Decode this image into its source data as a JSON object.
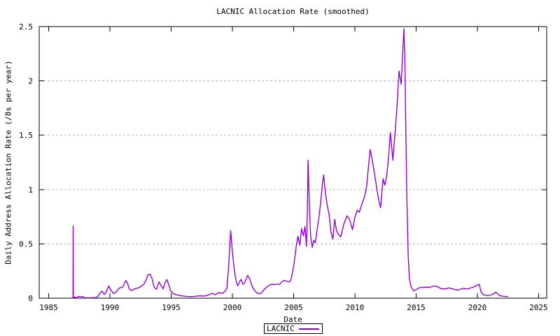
{
  "colors": {
    "line": "#9400d3",
    "grid": "#b4b4b4",
    "axis": "#000000",
    "text": "#000000",
    "background": "#ffffff"
  },
  "legend": {
    "entries": [
      {
        "label": "LACNIC",
        "color": "#9400d3"
      }
    ]
  },
  "chart_data": {
    "type": "line",
    "title": "LACNIC Allocation Rate (smoothed)",
    "xlabel": "Date",
    "ylabel": "Daily Address Allocation Rate (/8s per year)",
    "xlim": [
      1984.23,
      2025.66
    ],
    "ylim": [
      0,
      2.5
    ],
    "xticks": [
      1985,
      1990,
      1995,
      2000,
      2005,
      2010,
      2015,
      2020,
      2025
    ],
    "xtick_labels": [
      "1985",
      "1990",
      "1995",
      "2000",
      "2005",
      "2010",
      "2015",
      "2020",
      "2025"
    ],
    "yticks": [
      0,
      0.5,
      1,
      1.5,
      2,
      2.5
    ],
    "ytick_labels": [
      "0",
      "0.5",
      "1",
      "1.5",
      "2",
      "2.5"
    ],
    "grid": "horizontal-dashed",
    "legend_position": "bottom-center-below-xlabel",
    "series": [
      {
        "name": "LACNIC",
        "color": "#9400d3",
        "points": [
          [
            1986.99,
            0.0
          ],
          [
            1987.0,
            0.664
          ],
          [
            1987.02,
            0.01
          ],
          [
            1987.3,
            0.005
          ],
          [
            1987.45,
            0.018
          ],
          [
            1987.6,
            0.01
          ],
          [
            1987.75,
            0.016
          ],
          [
            1987.95,
            0.004
          ],
          [
            1988.4,
            0.003
          ],
          [
            1988.9,
            0.006
          ],
          [
            1989.05,
            0.02
          ],
          [
            1989.2,
            0.05
          ],
          [
            1989.35,
            0.065
          ],
          [
            1989.55,
            0.035
          ],
          [
            1989.7,
            0.055
          ],
          [
            1989.9,
            0.114
          ],
          [
            1990.1,
            0.071
          ],
          [
            1990.3,
            0.043
          ],
          [
            1990.5,
            0.056
          ],
          [
            1990.75,
            0.092
          ],
          [
            1991.05,
            0.103
          ],
          [
            1991.3,
            0.163
          ],
          [
            1991.45,
            0.135
          ],
          [
            1991.6,
            0.082
          ],
          [
            1991.8,
            0.07
          ],
          [
            1992.0,
            0.086
          ],
          [
            1992.2,
            0.092
          ],
          [
            1992.4,
            0.098
          ],
          [
            1992.6,
            0.114
          ],
          [
            1992.75,
            0.125
          ],
          [
            1992.95,
            0.168
          ],
          [
            1993.1,
            0.215
          ],
          [
            1993.3,
            0.22
          ],
          [
            1993.45,
            0.18
          ],
          [
            1993.6,
            0.103
          ],
          [
            1993.8,
            0.082
          ],
          [
            1994.0,
            0.15
          ],
          [
            1994.2,
            0.114
          ],
          [
            1994.35,
            0.086
          ],
          [
            1994.5,
            0.142
          ],
          [
            1994.65,
            0.172
          ],
          [
            1994.8,
            0.125
          ],
          [
            1994.95,
            0.071
          ],
          [
            1995.15,
            0.043
          ],
          [
            1995.35,
            0.034
          ],
          [
            1995.7,
            0.025
          ],
          [
            1996.1,
            0.018
          ],
          [
            1996.5,
            0.014
          ],
          [
            1996.9,
            0.016
          ],
          [
            1997.3,
            0.022
          ],
          [
            1997.7,
            0.02
          ],
          [
            1998.0,
            0.028
          ],
          [
            1998.35,
            0.045
          ],
          [
            1998.6,
            0.032
          ],
          [
            1998.9,
            0.052
          ],
          [
            1999.2,
            0.045
          ],
          [
            1999.4,
            0.065
          ],
          [
            1999.55,
            0.09
          ],
          [
            1999.7,
            0.3
          ],
          [
            1999.86,
            0.623
          ],
          [
            2000.0,
            0.425
          ],
          [
            2000.1,
            0.318
          ],
          [
            2000.22,
            0.21
          ],
          [
            2000.35,
            0.135
          ],
          [
            2000.45,
            0.114
          ],
          [
            2000.6,
            0.157
          ],
          [
            2000.72,
            0.172
          ],
          [
            2000.85,
            0.129
          ],
          [
            2001.0,
            0.142
          ],
          [
            2001.25,
            0.211
          ],
          [
            2001.4,
            0.18
          ],
          [
            2001.6,
            0.114
          ],
          [
            2001.8,
            0.071
          ],
          [
            2002.0,
            0.05
          ],
          [
            2002.2,
            0.039
          ],
          [
            2002.4,
            0.05
          ],
          [
            2002.6,
            0.082
          ],
          [
            2002.8,
            0.103
          ],
          [
            2003.0,
            0.12
          ],
          [
            2003.2,
            0.129
          ],
          [
            2003.45,
            0.125
          ],
          [
            2003.65,
            0.132
          ],
          [
            2003.85,
            0.126
          ],
          [
            2004.05,
            0.152
          ],
          [
            2004.2,
            0.163
          ],
          [
            2004.4,
            0.158
          ],
          [
            2004.6,
            0.15
          ],
          [
            2004.75,
            0.16
          ],
          [
            2004.9,
            0.23
          ],
          [
            2005.05,
            0.33
          ],
          [
            2005.2,
            0.47
          ],
          [
            2005.35,
            0.57
          ],
          [
            2005.5,
            0.49
          ],
          [
            2005.65,
            0.64
          ],
          [
            2005.8,
            0.575
          ],
          [
            2005.93,
            0.66
          ],
          [
            2006.05,
            0.478
          ],
          [
            2006.12,
            0.8
          ],
          [
            2006.18,
            1.27
          ],
          [
            2006.3,
            0.8
          ],
          [
            2006.4,
            0.554
          ],
          [
            2006.52,
            0.468
          ],
          [
            2006.65,
            0.533
          ],
          [
            2006.78,
            0.51
          ],
          [
            2006.9,
            0.62
          ],
          [
            2007.05,
            0.727
          ],
          [
            2007.2,
            0.876
          ],
          [
            2007.35,
            1.048
          ],
          [
            2007.45,
            1.134
          ],
          [
            2007.6,
            0.962
          ],
          [
            2007.75,
            0.85
          ],
          [
            2007.9,
            0.77
          ],
          [
            2008.05,
            0.61
          ],
          [
            2008.2,
            0.543
          ],
          [
            2008.35,
            0.726
          ],
          [
            2008.5,
            0.62
          ],
          [
            2008.68,
            0.586
          ],
          [
            2008.85,
            0.565
          ],
          [
            2009.1,
            0.683
          ],
          [
            2009.35,
            0.758
          ],
          [
            2009.55,
            0.73
          ],
          [
            2009.8,
            0.63
          ],
          [
            2010.0,
            0.747
          ],
          [
            2010.2,
            0.81
          ],
          [
            2010.35,
            0.79
          ],
          [
            2010.6,
            0.876
          ],
          [
            2010.8,
            0.94
          ],
          [
            2010.95,
            1.02
          ],
          [
            2011.1,
            1.2
          ],
          [
            2011.25,
            1.37
          ],
          [
            2011.4,
            1.28
          ],
          [
            2011.6,
            1.15
          ],
          [
            2011.8,
            1.0
          ],
          [
            2011.95,
            0.9
          ],
          [
            2012.1,
            0.833
          ],
          [
            2012.3,
            1.1
          ],
          [
            2012.45,
            1.04
          ],
          [
            2012.6,
            1.13
          ],
          [
            2012.75,
            1.3
          ],
          [
            2012.9,
            1.525
          ],
          [
            2013.1,
            1.27
          ],
          [
            2013.3,
            1.55
          ],
          [
            2013.45,
            1.78
          ],
          [
            2013.6,
            2.09
          ],
          [
            2013.78,
            1.97
          ],
          [
            2013.9,
            2.25
          ],
          [
            2014.0,
            2.48
          ],
          [
            2014.08,
            2.2
          ],
          [
            2014.15,
            1.6
          ],
          [
            2014.25,
            0.9
          ],
          [
            2014.35,
            0.4
          ],
          [
            2014.45,
            0.18
          ],
          [
            2014.6,
            0.1
          ],
          [
            2014.8,
            0.068
          ],
          [
            2015.0,
            0.078
          ],
          [
            2015.2,
            0.095
          ],
          [
            2015.5,
            0.1
          ],
          [
            2015.8,
            0.102
          ],
          [
            2016.1,
            0.1
          ],
          [
            2016.4,
            0.112
          ],
          [
            2016.7,
            0.108
          ],
          [
            2017.0,
            0.09
          ],
          [
            2017.3,
            0.085
          ],
          [
            2017.7,
            0.095
          ],
          [
            2018.0,
            0.085
          ],
          [
            2018.4,
            0.075
          ],
          [
            2018.8,
            0.09
          ],
          [
            2019.2,
            0.085
          ],
          [
            2019.6,
            0.1
          ],
          [
            2019.9,
            0.115
          ],
          [
            2020.15,
            0.128
          ],
          [
            2020.3,
            0.06
          ],
          [
            2020.5,
            0.03
          ],
          [
            2020.9,
            0.025
          ],
          [
            2021.2,
            0.032
          ],
          [
            2021.5,
            0.056
          ],
          [
            2021.8,
            0.025
          ],
          [
            2022.1,
            0.018
          ],
          [
            2022.5,
            0.014
          ]
        ]
      }
    ]
  }
}
